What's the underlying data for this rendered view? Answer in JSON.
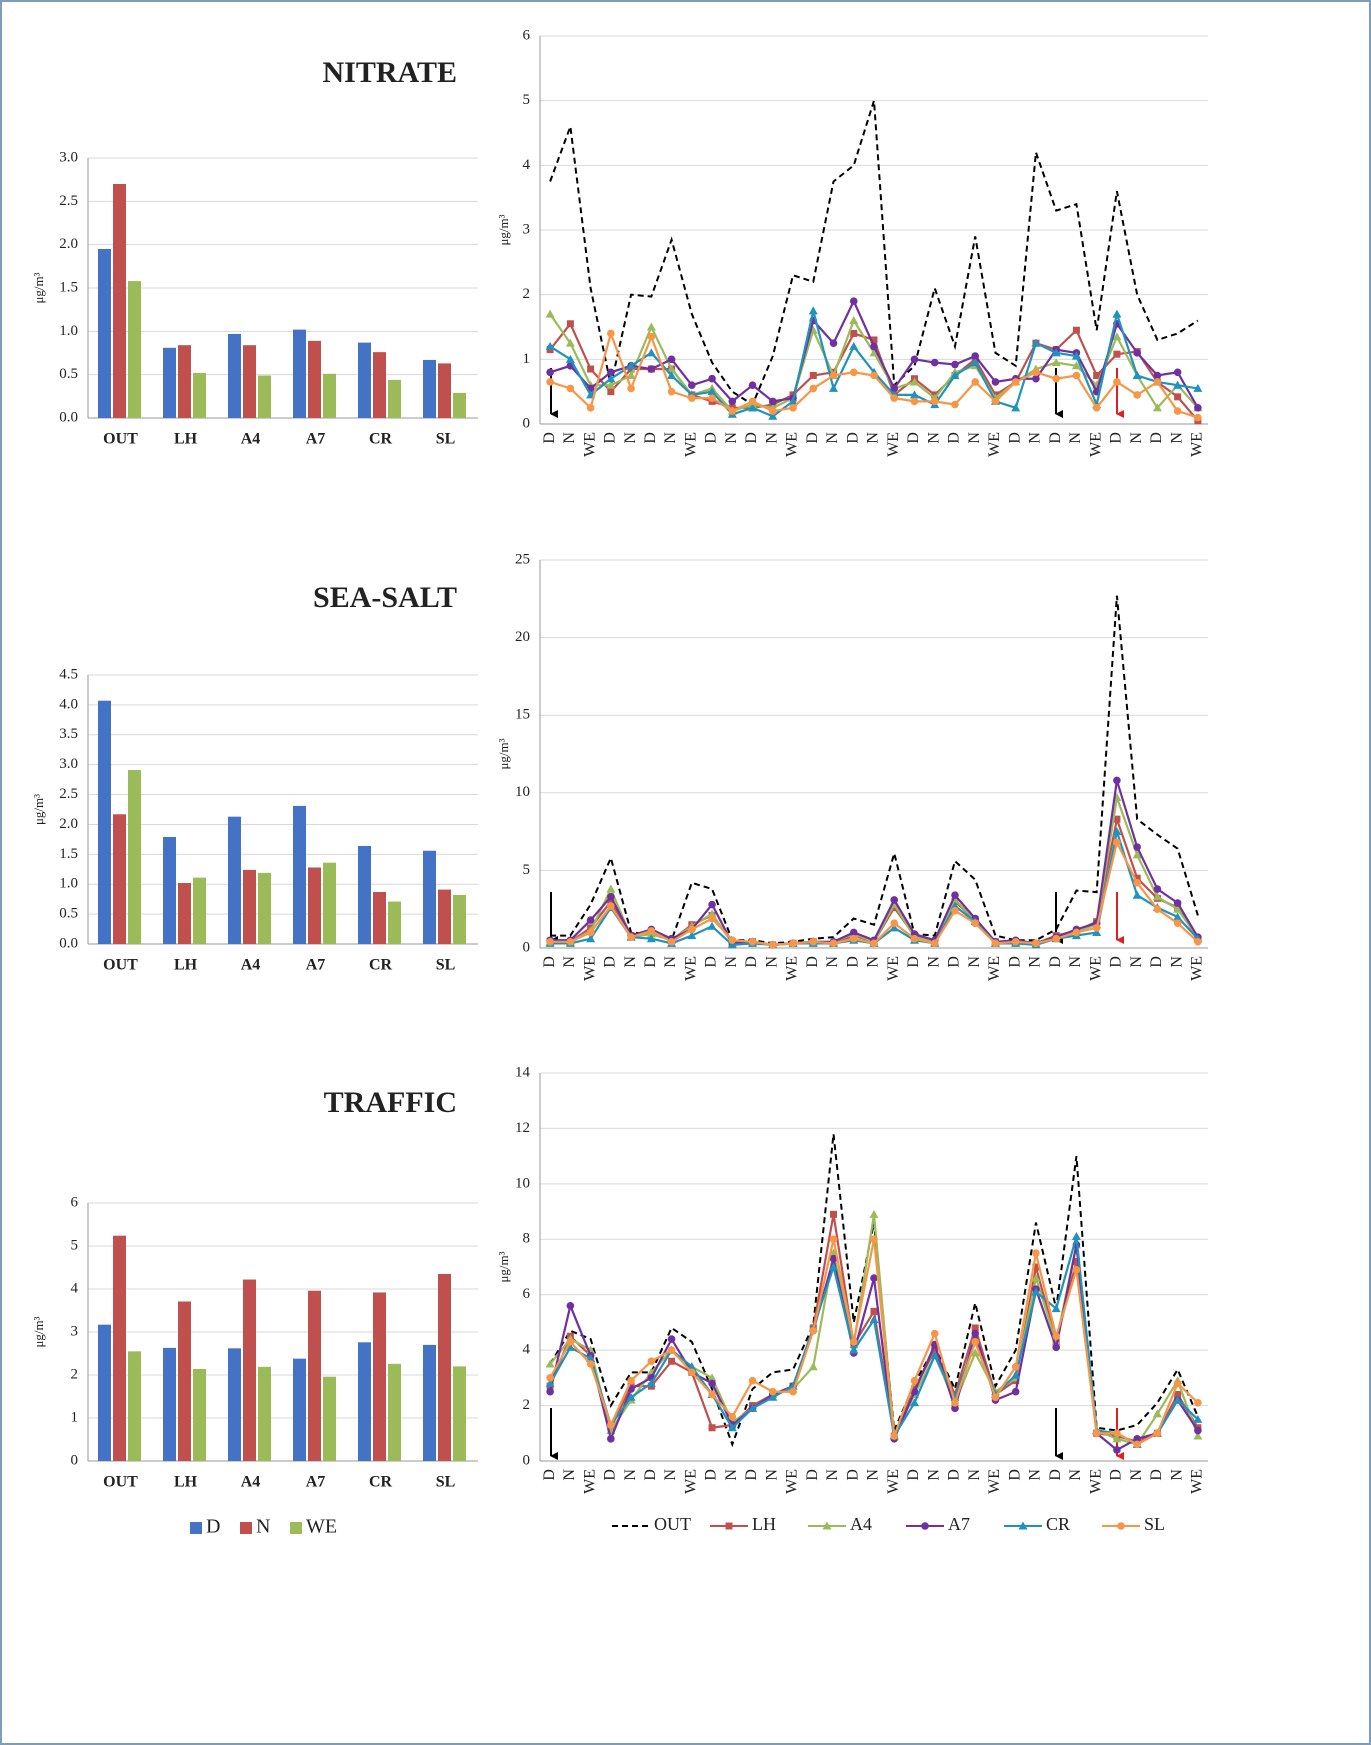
{
  "chart_data": [
    {
      "type": "bar",
      "title": "NITRATE",
      "y_label": "μg/m³",
      "categories": [
        "OUT",
        "LH",
        "A4",
        "A7",
        "CR",
        "SL"
      ],
      "series": [
        {
          "color": "#4472c4",
          "values": [
            1.95,
            0.81,
            0.97,
            1.02,
            0.87,
            0.67
          ]
        },
        {
          "color": "#c0504d",
          "values": [
            2.7,
            0.84,
            0.84,
            0.89,
            0.76,
            0.63
          ]
        },
        {
          "color": "#9bbb59",
          "values": [
            1.58,
            0.52,
            0.49,
            0.51,
            0.44,
            0.29
          ]
        }
      ],
      "ylim": [
        0,
        3
      ],
      "yticks": [
        {
          "value": 0,
          "label": "0.0"
        },
        {
          "value": 0.5,
          "label": "0.5"
        },
        {
          "value": 1,
          "label": "1.0"
        },
        {
          "value": 1.5,
          "label": "1.5"
        },
        {
          "value": 2,
          "label": "2.0"
        },
        {
          "value": 2.5,
          "label": "2.5"
        },
        {
          "value": 3,
          "label": "3.0"
        }
      ],
      "grid": true
    },
    {
      "type": "line",
      "y_label": "μg/m³",
      "categories": [
        "D",
        "N",
        "WE",
        "D",
        "N",
        "D",
        "N",
        "WE",
        "D",
        "N",
        "D",
        "N",
        "WE",
        "D",
        "N",
        "D",
        "N",
        "WE",
        "D",
        "N",
        "D",
        "N",
        "WE",
        "D",
        "N",
        "D",
        "N",
        "WE",
        "D",
        "N",
        "D",
        "N",
        "WE"
      ],
      "series": [
        {
          "color": "#000000",
          "marker": "none",
          "dash": true,
          "values": [
            3.75,
            4.6,
            2.1,
            0.6,
            2.0,
            1.97,
            2.85,
            1.7,
            0.95,
            0.5,
            0.3,
            1.05,
            2.3,
            2.2,
            3.75,
            4.0,
            5.0,
            0.6,
            0.9,
            2.1,
            1.2,
            2.9,
            1.1,
            0.9,
            4.2,
            3.3,
            3.4,
            1.45,
            3.6,
            2.0,
            1.3,
            1.4,
            1.6
          ]
        },
        {
          "color": "#c0504d",
          "marker": "square",
          "values": [
            1.15,
            1.55,
            0.85,
            0.5,
            0.85,
            0.85,
            0.85,
            0.45,
            0.35,
            0.25,
            0.25,
            0.3,
            0.45,
            0.75,
            0.8,
            1.4,
            1.3,
            0.45,
            0.7,
            0.45,
            0.75,
            1.0,
            0.45,
            0.65,
            1.25,
            1.15,
            1.45,
            0.75,
            1.08,
            1.12,
            0.65,
            0.42,
            0.05
          ]
        },
        {
          "color": "#9bbb59",
          "marker": "triangle",
          "values": [
            1.7,
            1.25,
            0.6,
            0.6,
            0.75,
            1.5,
            0.85,
            0.45,
            0.55,
            0.2,
            0.3,
            0.25,
            0.4,
            1.45,
            0.75,
            1.6,
            1.1,
            0.55,
            0.65,
            0.4,
            0.8,
            0.9,
            0.4,
            0.65,
            0.85,
            0.95,
            0.9,
            0.6,
            1.35,
            0.75,
            0.25,
            0.6,
            0.25
          ]
        },
        {
          "color": "#7030a0",
          "marker": "circle",
          "values": [
            0.8,
            0.9,
            0.55,
            0.8,
            0.9,
            0.85,
            1.0,
            0.6,
            0.7,
            0.35,
            0.6,
            0.35,
            0.4,
            1.6,
            1.25,
            1.9,
            1.2,
            0.55,
            1.0,
            0.95,
            0.92,
            1.05,
            0.65,
            0.7,
            0.7,
            1.15,
            1.1,
            0.5,
            1.55,
            1.1,
            0.75,
            0.8,
            0.25
          ]
        },
        {
          "color": "#1f93bd",
          "marker": "triangle",
          "values": [
            1.2,
            1.0,
            0.45,
            0.7,
            0.9,
            1.1,
            0.75,
            0.45,
            0.5,
            0.15,
            0.25,
            0.12,
            0.35,
            1.75,
            0.55,
            1.2,
            0.8,
            0.45,
            0.45,
            0.3,
            0.75,
            0.95,
            0.35,
            0.25,
            1.25,
            1.1,
            1.05,
            0.3,
            1.7,
            0.75,
            0.65,
            0.6,
            0.55
          ]
        },
        {
          "color": "#f79646",
          "marker": "circle",
          "values": [
            0.65,
            0.55,
            0.25,
            1.4,
            0.55,
            1.35,
            0.5,
            0.4,
            0.4,
            0.2,
            0.35,
            0.2,
            0.25,
            0.55,
            0.75,
            0.8,
            0.75,
            0.4,
            0.35,
            0.35,
            0.3,
            0.65,
            0.35,
            0.65,
            0.8,
            0.7,
            0.75,
            0.25,
            0.65,
            0.45,
            0.65,
            0.2,
            0.1
          ]
        }
      ],
      "ylim": [
        0,
        6
      ],
      "yticks": [
        0,
        1,
        2,
        3,
        4,
        5,
        6
      ],
      "grid": true
    },
    {
      "type": "bar",
      "title": "SEA-SALT",
      "y_label": "μg/m³",
      "categories": [
        "OUT",
        "LH",
        "A4",
        "A7",
        "CR",
        "SL"
      ],
      "series": [
        {
          "color": "#4472c4",
          "values": [
            4.07,
            1.79,
            2.13,
            2.31,
            1.64,
            1.56
          ]
        },
        {
          "color": "#c0504d",
          "values": [
            2.17,
            1.02,
            1.24,
            1.28,
            0.87,
            0.91
          ]
        },
        {
          "color": "#9bbb59",
          "values": [
            2.91,
            1.11,
            1.19,
            1.36,
            0.71,
            0.82
          ]
        }
      ],
      "ylim": [
        0,
        4.5
      ],
      "yticks": [
        {
          "value": 0,
          "label": "0.0"
        },
        {
          "value": 0.5,
          "label": "0.5"
        },
        {
          "value": 1,
          "label": "1.0"
        },
        {
          "value": 1.5,
          "label": "1.5"
        },
        {
          "value": 2,
          "label": "2.0"
        },
        {
          "value": 2.5,
          "label": "2.5"
        },
        {
          "value": 3,
          "label": "3.0"
        },
        {
          "value": 3.5,
          "label": "3.5"
        },
        {
          "value": 4,
          "label": "4.0"
        },
        {
          "value": 4.5,
          "label": "4.5"
        }
      ],
      "grid": true
    },
    {
      "type": "line",
      "y_label": "μg/m³",
      "categories": [
        "D",
        "N",
        "WE",
        "D",
        "N",
        "D",
        "N",
        "WE",
        "D",
        "N",
        "D",
        "N",
        "WE",
        "D",
        "N",
        "D",
        "N",
        "WE",
        "D",
        "N",
        "D",
        "N",
        "WE",
        "D",
        "N",
        "D",
        "N",
        "WE",
        "D",
        "N",
        "D",
        "N",
        "WE"
      ],
      "series": [
        {
          "color": "#000000",
          "marker": "none",
          "dash": true,
          "values": [
            0.8,
            0.8,
            2.8,
            5.8,
            1.0,
            0.9,
            0.5,
            4.2,
            3.8,
            0.5,
            0.5,
            0.3,
            0.4,
            0.6,
            0.7,
            1.9,
            1.5,
            6.1,
            0.9,
            0.8,
            5.6,
            4.4,
            0.8,
            0.5,
            0.5,
            1.2,
            3.7,
            3.6,
            22.7,
            8.3,
            7.3,
            6.4,
            2.1
          ]
        },
        {
          "color": "#c0504d",
          "marker": "square",
          "values": [
            0.4,
            0.4,
            1.3,
            3.0,
            0.8,
            1.0,
            0.5,
            1.5,
            2.1,
            0.4,
            0.4,
            0.2,
            0.3,
            0.4,
            0.3,
            0.8,
            0.4,
            2.6,
            0.8,
            0.4,
            3.0,
            1.8,
            0.4,
            0.4,
            0.3,
            0.8,
            1.1,
            1.7,
            8.3,
            4.5,
            3.2,
            2.6,
            0.6
          ]
        },
        {
          "color": "#9bbb59",
          "marker": "triangle",
          "values": [
            0.4,
            0.4,
            1.1,
            3.8,
            0.7,
            0.9,
            0.5,
            1.4,
            2.2,
            0.3,
            0.4,
            0.2,
            0.3,
            0.4,
            0.4,
            0.9,
            0.4,
            2.8,
            0.7,
            0.4,
            3.1,
            1.8,
            0.4,
            0.4,
            0.3,
            0.7,
            1.1,
            1.5,
            9.7,
            6.0,
            3.3,
            2.5,
            0.7
          ]
        },
        {
          "color": "#7030a0",
          "marker": "circle",
          "values": [
            0.5,
            0.5,
            1.8,
            3.3,
            0.8,
            1.2,
            0.6,
            1.2,
            2.8,
            0.3,
            0.4,
            0.2,
            0.3,
            0.4,
            0.4,
            1.0,
            0.5,
            3.1,
            0.9,
            0.5,
            3.4,
            1.9,
            0.4,
            0.5,
            0.3,
            0.7,
            1.2,
            1.6,
            10.8,
            6.5,
            3.8,
            2.9,
            0.7
          ]
        },
        {
          "color": "#1f93bd",
          "marker": "triangle",
          "values": [
            0.3,
            0.3,
            0.6,
            2.6,
            0.7,
            0.6,
            0.3,
            0.8,
            1.4,
            0.2,
            0.3,
            0.2,
            0.3,
            0.3,
            0.3,
            0.5,
            0.3,
            1.3,
            0.5,
            0.3,
            2.7,
            1.7,
            0.3,
            0.3,
            0.2,
            0.6,
            0.8,
            1.0,
            7.5,
            3.4,
            2.6,
            2.0,
            0.6
          ]
        },
        {
          "color": "#f79646",
          "marker": "circle",
          "values": [
            0.4,
            0.4,
            1.0,
            2.7,
            0.7,
            1.1,
            0.4,
            1.2,
            1.9,
            0.5,
            0.4,
            0.2,
            0.3,
            0.4,
            0.3,
            0.6,
            0.3,
            1.6,
            0.6,
            0.3,
            2.4,
            1.6,
            0.3,
            0.4,
            0.3,
            0.6,
            1.0,
            1.3,
            6.8,
            4.2,
            2.5,
            1.6,
            0.4
          ]
        }
      ],
      "ylim": [
        0,
        25
      ],
      "yticks": [
        0,
        5,
        10,
        15,
        20,
        25
      ],
      "grid": true
    },
    {
      "type": "bar",
      "title": "TRAFFIC",
      "y_label": "μg/m³",
      "categories": [
        "OUT",
        "LH",
        "A4",
        "A7",
        "CR",
        "SL"
      ],
      "series": [
        {
          "name": "D",
          "color": "#4472c4",
          "values": [
            3.17,
            2.63,
            2.62,
            2.38,
            2.76,
            2.7
          ]
        },
        {
          "name": "N",
          "color": "#c0504d",
          "values": [
            5.24,
            3.71,
            4.22,
            3.96,
            3.92,
            4.35
          ]
        },
        {
          "name": "WE",
          "color": "#9bbb59",
          "values": [
            2.55,
            2.14,
            2.19,
            1.96,
            2.26,
            2.2
          ]
        }
      ],
      "ylim": [
        0,
        6
      ],
      "yticks": [
        0,
        1,
        2,
        3,
        4,
        5,
        6
      ],
      "grid": true,
      "legend": "bottom"
    },
    {
      "type": "line",
      "y_label": "μg/m³",
      "categories": [
        "D",
        "N",
        "WE",
        "D",
        "N",
        "D",
        "N",
        "WE",
        "D",
        "N",
        "D",
        "N",
        "WE",
        "D",
        "N",
        "D",
        "N",
        "WE",
        "D",
        "N",
        "D",
        "N",
        "WE",
        "D",
        "N",
        "D",
        "N",
        "WE",
        "D",
        "N",
        "D",
        "N",
        "WE"
      ],
      "series": [
        {
          "name": "OUT",
          "color": "#000000",
          "marker": "none",
          "dash": true,
          "values": [
            3.5,
            4.7,
            4.4,
            2.0,
            3.2,
            3.2,
            4.8,
            4.3,
            2.6,
            0.6,
            2.6,
            3.2,
            3.3,
            4.9,
            11.8,
            5.0,
            8.6,
            1.1,
            2.8,
            4.1,
            2.6,
            5.7,
            2.7,
            4.0,
            8.6,
            5.5,
            11.0,
            1.2,
            1.1,
            1.3,
            2.1,
            3.3,
            1.6
          ]
        },
        {
          "name": "LH",
          "color": "#c0504d",
          "marker": "square",
          "values": [
            2.7,
            4.5,
            3.8,
            1.2,
            2.7,
            2.7,
            3.6,
            3.2,
            1.2,
            1.3,
            2.0,
            2.4,
            2.7,
            4.8,
            8.9,
            4.2,
            5.4,
            0.9,
            2.6,
            4.0,
            2.4,
            4.8,
            2.4,
            2.9,
            7.0,
            4.3,
            7.2,
            1.0,
            0.9,
            0.7,
            1.0,
            2.4,
            1.2
          ]
        },
        {
          "name": "A4",
          "color": "#9bbb59",
          "marker": "triangle",
          "values": [
            3.5,
            4.4,
            4.0,
            1.1,
            2.2,
            3.2,
            4.0,
            3.4,
            3.0,
            1.4,
            1.9,
            2.4,
            2.6,
            3.4,
            7.5,
            4.2,
            8.9,
            0.9,
            2.4,
            3.8,
            2.1,
            3.9,
            2.5,
            3.0,
            6.6,
            4.3,
            7.8,
            1.1,
            0.8,
            0.6,
            1.7,
            2.9,
            0.9
          ]
        },
        {
          "name": "A7",
          "color": "#7030a0",
          "marker": "circle",
          "values": [
            2.5,
            5.6,
            3.8,
            0.8,
            2.6,
            3.0,
            4.4,
            3.2,
            2.8,
            1.3,
            1.9,
            2.4,
            2.7,
            4.7,
            7.3,
            3.9,
            6.6,
            0.8,
            2.5,
            4.2,
            1.9,
            4.6,
            2.2,
            2.5,
            6.2,
            4.1,
            7.8,
            1.0,
            0.4,
            0.8,
            1.0,
            2.2,
            1.1
          ]
        },
        {
          "name": "CR",
          "color": "#1f93bd",
          "marker": "triangle",
          "values": [
            2.8,
            4.1,
            3.7,
            1.3,
            2.3,
            2.8,
            4.0,
            3.4,
            2.4,
            1.2,
            1.9,
            2.3,
            2.7,
            4.8,
            7.0,
            4.0,
            5.1,
            0.9,
            2.1,
            3.8,
            2.3,
            4.3,
            2.4,
            3.1,
            6.1,
            5.5,
            8.1,
            1.1,
            1.0,
            0.6,
            1.0,
            2.2,
            1.5
          ]
        },
        {
          "name": "SL",
          "color": "#f79646",
          "marker": "circle",
          "values": [
            3.0,
            4.3,
            3.5,
            1.3,
            2.9,
            3.6,
            4.0,
            3.2,
            2.4,
            1.6,
            2.9,
            2.5,
            2.5,
            4.7,
            8.0,
            4.3,
            8.0,
            0.9,
            2.9,
            4.6,
            2.1,
            4.3,
            2.3,
            3.4,
            7.5,
            4.5,
            6.9,
            1.0,
            1.0,
            0.6,
            1.0,
            2.8,
            2.1
          ]
        }
      ],
      "ylim": [
        0,
        14
      ],
      "yticks": [
        0,
        2,
        4,
        6,
        8,
        10,
        12,
        14
      ],
      "grid": true,
      "legend": "bottom"
    }
  ]
}
